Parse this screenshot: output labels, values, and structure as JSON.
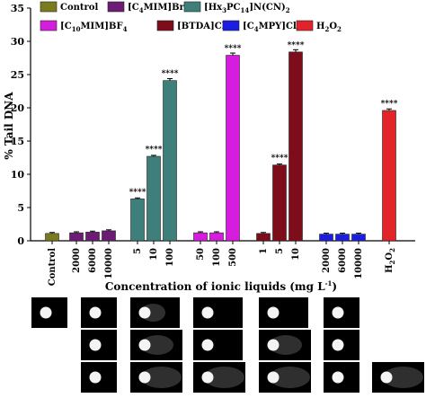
{
  "chart_data": {
    "type": "bar",
    "ylabel": "% Tail DNA",
    "xlabel_main": "Concentration of ionic liquids (mg L",
    "xlabel_sup": "-1",
    "xlabel_close": ")",
    "ylim": [
      0,
      35
    ],
    "yticks": [
      "0",
      "5",
      "10",
      "15",
      "20",
      "25",
      "30",
      "35"
    ],
    "legend": [
      {
        "label": "Control",
        "color": "#7a7a1e"
      },
      {
        "label": "[C4MIM]Br",
        "pre": "[C",
        "sub": "4",
        "post": "MIM]Br",
        "color": "#6c1c75"
      },
      {
        "label": "[Hx3PC14]N(CN)2",
        "pre": "[Hx",
        "sub": "3",
        "mid": "PC",
        "sub2": "14",
        "post": "]N(CN)",
        "sub3": "2",
        "color": "#3e7f7b"
      },
      {
        "label": "[C10MIM]BF4",
        "pre": "[C",
        "sub": "10",
        "post": "MIM]BF",
        "sub2": "4",
        "color": "#d61ddd"
      },
      {
        "label": "[BTDA]Cl",
        "pre": "[BTDA]Cl",
        "color": "#7d0d1b"
      },
      {
        "label": "[C4MPY]Cl",
        "pre": "[C",
        "sub": "4",
        "post": "MPY]Cl",
        "color": "#1b1de0"
      },
      {
        "label": "H2O2",
        "pre": "H",
        "sub": "2",
        "post": "O",
        "sub2": "2",
        "color": "#e2242a"
      }
    ],
    "bars": [
      {
        "group": "Control",
        "x": "Control",
        "value": 1.1,
        "color": "#7a7a1e",
        "sig": ""
      },
      {
        "group": "[C4MIM]Br",
        "x": "2000",
        "value": 1.2,
        "color": "#6c1c75",
        "sig": ""
      },
      {
        "group": "[C4MIM]Br",
        "x": "6000",
        "value": 1.3,
        "color": "#6c1c75",
        "sig": ""
      },
      {
        "group": "[C4MIM]Br",
        "x": "10000",
        "value": 1.5,
        "color": "#6c1c75",
        "sig": ""
      },
      {
        "group": "[Hx3PC14]N(CN)2",
        "x": "5",
        "value": 6.3,
        "color": "#3e7f7b",
        "sig": "****"
      },
      {
        "group": "[Hx3PC14]N(CN)2",
        "x": "10",
        "value": 12.7,
        "color": "#3e7f7b",
        "sig": "****"
      },
      {
        "group": "[Hx3PC14]N(CN)2",
        "x": "100",
        "value": 24.1,
        "color": "#3e7f7b",
        "sig": "****"
      },
      {
        "group": "[C10MIM]BF4",
        "x": "50",
        "value": 1.2,
        "color": "#d61ddd",
        "sig": ""
      },
      {
        "group": "[C10MIM]BF4",
        "x": "100",
        "value": 1.2,
        "color": "#d61ddd",
        "sig": ""
      },
      {
        "group": "[C10MIM]BF4",
        "x": "500",
        "value": 27.9,
        "color": "#d61ddd",
        "sig": "****"
      },
      {
        "group": "[BTDA]Cl",
        "x": "1",
        "value": 1.1,
        "color": "#7d0d1b",
        "sig": ""
      },
      {
        "group": "[BTDA]Cl",
        "x": "5",
        "value": 11.4,
        "color": "#7d0d1b",
        "sig": "****"
      },
      {
        "group": "[BTDA]Cl",
        "x": "10",
        "value": 28.4,
        "color": "#7d0d1b",
        "sig": "****"
      },
      {
        "group": "[C4MPY]Cl",
        "x": "2000",
        "value": 1.0,
        "color": "#1b1de0",
        "sig": ""
      },
      {
        "group": "[C4MPY]Cl",
        "x": "6000",
        "value": 1.0,
        "color": "#1b1de0",
        "sig": ""
      },
      {
        "group": "[C4MPY]Cl",
        "x": "10000",
        "value": 1.0,
        "color": "#1b1de0",
        "sig": ""
      },
      {
        "group": "H2O2",
        "x": "H2O2",
        "value": 19.6,
        "color": "#e2242a",
        "sig": "****"
      }
    ],
    "error_bars": true,
    "grid": false,
    "legend_position": "top"
  },
  "comet_images": {
    "description_rows": 3,
    "columns": [
      {
        "rows": [
          1
        ],
        "tail": 0
      },
      {
        "rows": [
          1,
          2,
          3
        ],
        "tail": [
          0,
          0,
          0
        ]
      },
      {
        "rows": [
          1,
          2,
          3
        ],
        "tail": [
          1,
          2,
          3
        ]
      },
      {
        "rows": [
          1,
          2,
          3
        ],
        "tail": [
          0,
          0,
          3
        ]
      },
      {
        "rows": [
          1,
          2,
          3
        ],
        "tail": [
          0,
          2,
          3
        ]
      },
      {
        "rows": [
          1,
          2,
          3
        ],
        "tail": [
          0,
          0,
          0
        ]
      },
      {
        "rows": [
          3
        ],
        "tail": [
          3
        ]
      }
    ]
  }
}
